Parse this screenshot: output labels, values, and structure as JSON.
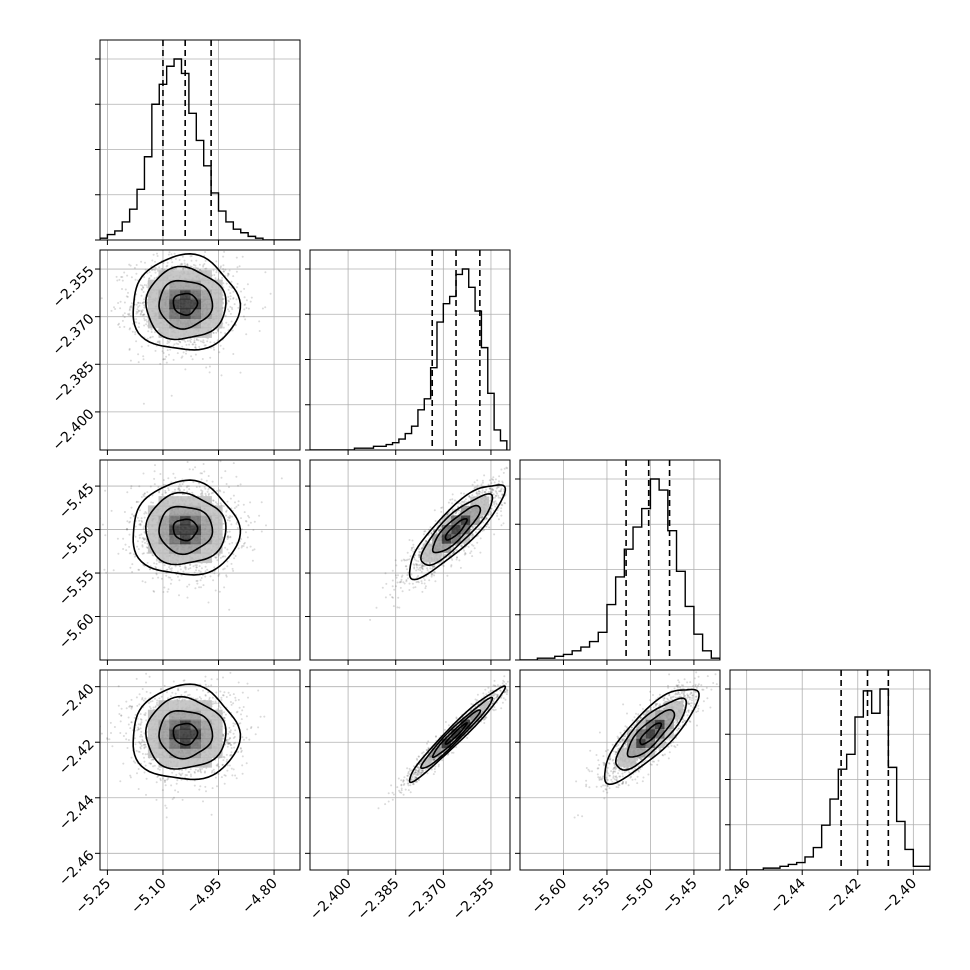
{
  "chart_data": {
    "type": "corner",
    "grid": true,
    "colors": {
      "hist": "#000000",
      "grid": "#b0b0b0",
      "points": "#555555",
      "contours": "#000000",
      "density": "#000000"
    },
    "params": [
      {
        "range": [
          -5.27,
          -4.73
        ],
        "ticks": [
          -5.25,
          -5.1,
          -4.95,
          -4.8
        ],
        "tick_labels": [
          "−5.25",
          "−5.10",
          "−4.95",
          "−4.80"
        ],
        "mean": -5.04,
        "sigma": 0.072,
        "quantiles": [
          -5.1,
          -5.04,
          -4.97
        ]
      },
      {
        "range": [
          -2.412,
          -2.349
        ],
        "ticks": [
          -2.4,
          -2.385,
          -2.37,
          -2.355
        ],
        "tick_labels": [
          "−2.400",
          "−2.385",
          "−2.370",
          "−2.355"
        ],
        "mean": -2.366,
        "sigma": 0.0075,
        "quantiles": [
          -2.3735,
          -2.366,
          -2.3585
        ]
      },
      {
        "range": [
          -5.65,
          -5.42
        ],
        "ticks": [
          -5.6,
          -5.55,
          -5.5,
          -5.45
        ],
        "tick_labels": [
          "−5.60",
          "−5.55",
          "−5.50",
          "−5.45"
        ],
        "mean": -5.5,
        "sigma": 0.027,
        "quantiles": [
          -5.528,
          -5.502,
          -5.478
        ]
      },
      {
        "range": [
          -2.466,
          -2.394
        ],
        "ticks": [
          -2.46,
          -2.44,
          -2.42,
          -2.4
        ],
        "tick_labels": [
          "−2.46",
          "−2.44",
          "−2.42",
          "−2.40"
        ],
        "mean": -2.417,
        "sigma": 0.0085,
        "quantiles": [
          -2.426,
          -2.4165,
          -2.409
        ]
      }
    ],
    "correlations": [
      {
        "pair": [
          1,
          0
        ],
        "rho": 0.0
      },
      {
        "pair": [
          2,
          0
        ],
        "rho": 0.0
      },
      {
        "pair": [
          2,
          1
        ],
        "rho": 0.85
      },
      {
        "pair": [
          3,
          0
        ],
        "rho": 0.0
      },
      {
        "pair": [
          3,
          1
        ],
        "rho": 0.97
      },
      {
        "pair": [
          3,
          2
        ],
        "rho": 0.82
      }
    ],
    "histograms": [
      {
        "bins": [
          -5.27,
          -5.25,
          -5.23,
          -5.21,
          -5.19,
          -5.17,
          -5.15,
          -5.13,
          -5.11,
          -5.09,
          -5.07,
          -5.05,
          -5.03,
          -5.01,
          -4.99,
          -4.97,
          -4.95,
          -4.93,
          -4.91,
          -4.89,
          -4.87,
          -4.85,
          -4.83,
          -4.81,
          -4.79,
          -4.77,
          -4.75,
          -4.73
        ],
        "counts": [
          0.01,
          0.03,
          0.05,
          0.1,
          0.17,
          0.28,
          0.46,
          0.75,
          0.86,
          0.96,
          1.0,
          0.92,
          0.7,
          0.55,
          0.41,
          0.26,
          0.16,
          0.1,
          0.06,
          0.04,
          0.02,
          0.01,
          0.0,
          0.0,
          0.0,
          0.0,
          0.0
        ]
      },
      {
        "bins": [
          -2.412,
          -2.41,
          -2.408,
          -2.406,
          -2.404,
          -2.402,
          -2.4,
          -2.398,
          -2.396,
          -2.394,
          -2.392,
          -2.39,
          -2.388,
          -2.386,
          -2.384,
          -2.382,
          -2.38,
          -2.378,
          -2.376,
          -2.374,
          -2.372,
          -2.37,
          -2.368,
          -2.366,
          -2.364,
          -2.362,
          -2.36,
          -2.358,
          -2.356,
          -2.354,
          -2.352,
          -2.35
        ],
        "counts": [
          0.0,
          0.0,
          0.0,
          0.0,
          0.0,
          0.0,
          0.0,
          0.01,
          0.01,
          0.01,
          0.02,
          0.02,
          0.03,
          0.04,
          0.06,
          0.09,
          0.13,
          0.22,
          0.28,
          0.45,
          0.7,
          0.8,
          0.84,
          0.96,
          0.99,
          0.89,
          0.76,
          0.56,
          0.31,
          0.11,
          0.05
        ]
      },
      {
        "bins": [
          -5.65,
          -5.64,
          -5.63,
          -5.62,
          -5.61,
          -5.6,
          -5.59,
          -5.58,
          -5.57,
          -5.56,
          -5.55,
          -5.54,
          -5.53,
          -5.52,
          -5.51,
          -5.5,
          -5.49,
          -5.48,
          -5.47,
          -5.46,
          -5.45,
          -5.44,
          -5.43,
          -5.42
        ],
        "counts": [
          0.0,
          0.0,
          0.01,
          0.01,
          0.02,
          0.03,
          0.05,
          0.07,
          0.1,
          0.15,
          0.3,
          0.45,
          0.6,
          0.72,
          0.82,
          0.98,
          0.92,
          0.7,
          0.48,
          0.29,
          0.14,
          0.05,
          0.01
        ]
      },
      {
        "bins": [
          -2.466,
          -2.463,
          -2.46,
          -2.457,
          -2.454,
          -2.451,
          -2.448,
          -2.445,
          -2.442,
          -2.439,
          -2.436,
          -2.433,
          -2.43,
          -2.427,
          -2.424,
          -2.421,
          -2.418,
          -2.415,
          -2.412,
          -2.409,
          -2.406,
          -2.403,
          -2.4,
          -2.397,
          -2.394
        ],
        "counts": [
          0.0,
          0.0,
          0.0,
          0.0,
          0.01,
          0.01,
          0.02,
          0.03,
          0.04,
          0.07,
          0.12,
          0.24,
          0.38,
          0.54,
          0.62,
          0.82,
          0.96,
          0.84,
          0.97,
          0.55,
          0.26,
          0.11,
          0.02,
          0.02
        ]
      }
    ]
  }
}
